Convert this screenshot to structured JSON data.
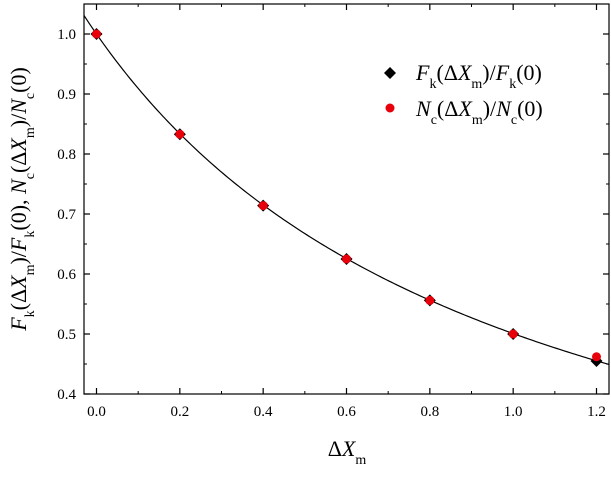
{
  "chart_data": {
    "type": "scatter",
    "xlabel": "ΔX_m",
    "ylabel": "F_k(ΔX_m)/F_k(0),  N_c(ΔX_m)/N_c(0)",
    "xlim": [
      -0.03,
      1.23
    ],
    "ylim": [
      0.4,
      1.05
    ],
    "x_ticks": [
      "0.0",
      "0.2",
      "0.4",
      "0.6",
      "0.8",
      "1.0",
      "1.2"
    ],
    "y_ticks": [
      "0.4",
      "0.5",
      "0.6",
      "0.7",
      "0.8",
      "0.9",
      "1.0"
    ],
    "legend_position": "top-right",
    "grid": false,
    "series": [
      {
        "name": "F_k(ΔX_m)/F_k(0)",
        "marker": "diamond",
        "color": "#000000",
        "x": [
          0.0,
          0.2,
          0.4,
          0.6,
          0.8,
          1.0,
          1.2
        ],
        "y": [
          1.0,
          0.833,
          0.714,
          0.625,
          0.556,
          0.5,
          0.455
        ]
      },
      {
        "name": "N_c(ΔX_m)/N_c(0)",
        "marker": "circle",
        "color": "#e8000b",
        "x": [
          0.0,
          0.2,
          0.4,
          0.6,
          0.8,
          1.0,
          1.2
        ],
        "y": [
          1.0,
          0.833,
          0.714,
          0.625,
          0.556,
          0.5,
          0.462
        ]
      }
    ],
    "fit_curve": {
      "type": "line",
      "color": "#000000",
      "formula": "1/(1+0.997x)",
      "x_range": [
        -0.03,
        1.23
      ]
    }
  }
}
